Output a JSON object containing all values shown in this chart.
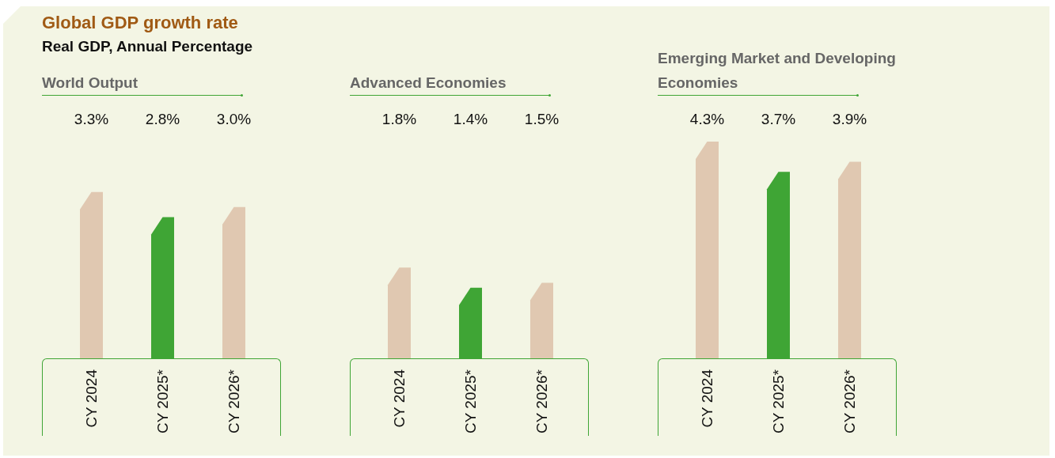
{
  "chart_data": [
    {
      "type": "other",
      "title": "Global GDP growth rate",
      "subtitle": "Real GDP, Annual Percentage"
    },
    {
      "type": "bar",
      "title": "World Output",
      "categories": [
        "CY 2024",
        "CY 2025*",
        "CY 2026*"
      ],
      "values": [
        3.3,
        2.8,
        3.0
      ],
      "colors": [
        "#e0c8b1",
        "#3fa535",
        "#e0c8b1"
      ],
      "data_labels": true,
      "value_labels": [
        "3.3%",
        "2.8%",
        "3.0%"
      ]
    },
    {
      "type": "bar",
      "title": "Advanced Economies",
      "categories": [
        "CY 2024",
        "CY 2025*",
        "CY 2026*"
      ],
      "values": [
        1.8,
        1.4,
        1.5
      ],
      "colors": [
        "#e0c8b1",
        "#3fa535",
        "#e0c8b1"
      ],
      "data_labels": true,
      "value_labels": [
        "1.8%",
        "1.4%",
        "1.5%"
      ]
    },
    {
      "type": "bar",
      "title": "Emerging Market and Developing Economies",
      "categories": [
        "CY 2024",
        "CY 2025*",
        "CY 2026*"
      ],
      "values": [
        4.3,
        3.7,
        3.9
      ],
      "colors": [
        "#e0c8b1",
        "#3fa535",
        "#e0c8b1"
      ],
      "data_labels": true,
      "value_labels": [
        "4.3%",
        "3.7%",
        "3.9%"
      ]
    }
  ]
}
